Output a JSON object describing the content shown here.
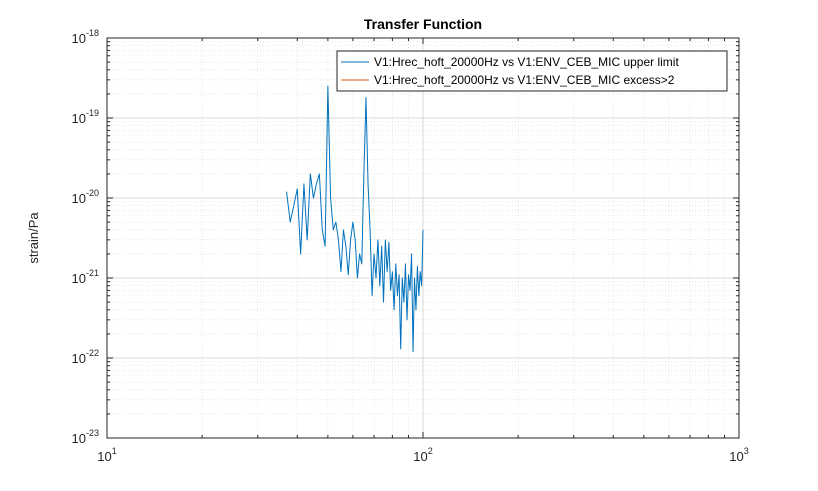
{
  "chart_data": {
    "type": "line",
    "title": "Transfer Function",
    "xlabel": "",
    "ylabel": "strain/Pa",
    "x_scale": "log",
    "y_scale": "log",
    "xlim": [
      10,
      1000
    ],
    "ylim": [
      1e-23,
      1e-18
    ],
    "grid": true,
    "legend_position": "top-right",
    "x_ticks": [
      {
        "base": "10",
        "exp": "1",
        "value": 10
      },
      {
        "base": "10",
        "exp": "2",
        "value": 100
      },
      {
        "base": "10",
        "exp": "3",
        "value": 1000
      }
    ],
    "y_ticks": [
      {
        "base": "10",
        "exp": "-23",
        "value": 1e-23
      },
      {
        "base": "10",
        "exp": "-22",
        "value": 1e-22
      },
      {
        "base": "10",
        "exp": "-21",
        "value": 1e-21
      },
      {
        "base": "10",
        "exp": "-20",
        "value": 1e-20
      },
      {
        "base": "10",
        "exp": "-19",
        "value": 1e-19
      },
      {
        "base": "10",
        "exp": "-18",
        "value": 1e-18
      }
    ],
    "series": [
      {
        "name": "V1:Hrec_hoft_20000Hz vs V1:ENV_CEB_MIC upper limit",
        "color": "#0072BD",
        "points": [
          [
            37,
            1.2e-20
          ],
          [
            38,
            5e-21
          ],
          [
            39,
            8e-21
          ],
          [
            40,
            1.3e-20
          ],
          [
            41,
            2e-21
          ],
          [
            42,
            1.5e-20
          ],
          [
            43,
            3e-21
          ],
          [
            44,
            2e-20
          ],
          [
            45,
            1e-20
          ],
          [
            46,
            1.5e-20
          ],
          [
            47,
            2e-20
          ],
          [
            48,
            4e-21
          ],
          [
            49,
            2.5e-21
          ],
          [
            50,
            2.5e-19
          ],
          [
            51,
            1e-20
          ],
          [
            52,
            4e-21
          ],
          [
            53,
            5e-21
          ],
          [
            54,
            3e-21
          ],
          [
            55,
            1.2e-21
          ],
          [
            56,
            4e-21
          ],
          [
            57,
            2.5e-21
          ],
          [
            58,
            1.1e-21
          ],
          [
            59,
            3e-21
          ],
          [
            60,
            5e-21
          ],
          [
            61,
            3e-21
          ],
          [
            62,
            1e-21
          ],
          [
            63,
            2e-21
          ],
          [
            64,
            1.5e-21
          ],
          [
            65,
            2e-20
          ],
          [
            66,
            1.8e-19
          ],
          [
            67,
            1.5e-20
          ],
          [
            68,
            4e-21
          ],
          [
            69,
            6e-22
          ],
          [
            70,
            2e-21
          ],
          [
            71,
            1e-21
          ],
          [
            72,
            3e-21
          ],
          [
            73,
            8e-22
          ],
          [
            74,
            2.5e-21
          ],
          [
            75,
            5e-22
          ],
          [
            76,
            3e-21
          ],
          [
            77,
            1.2e-21
          ],
          [
            78,
            2.8e-21
          ],
          [
            79,
            7e-22
          ],
          [
            80,
            1.2e-21
          ],
          [
            81,
            4e-22
          ],
          [
            82,
            1.5e-21
          ],
          [
            83,
            6e-22
          ],
          [
            84,
            1.1e-21
          ],
          [
            85,
            1.3e-22
          ],
          [
            86,
            1e-21
          ],
          [
            87,
            5e-22
          ],
          [
            88,
            1.5e-21
          ],
          [
            89,
            3e-22
          ],
          [
            90,
            1.1e-21
          ],
          [
            91,
            7e-22
          ],
          [
            92,
            2e-21
          ],
          [
            93,
            1.2e-22
          ],
          [
            94,
            1e-21
          ],
          [
            95,
            4e-22
          ],
          [
            96,
            1.4e-21
          ],
          [
            97,
            6e-22
          ],
          [
            98,
            1.2e-21
          ],
          [
            99,
            8e-22
          ],
          [
            100,
            4e-21
          ]
        ]
      },
      {
        "name": "V1:Hrec_hoft_20000Hz vs V1:ENV_CEB_MIC excess>2",
        "color": "#D95319",
        "points": []
      }
    ]
  }
}
